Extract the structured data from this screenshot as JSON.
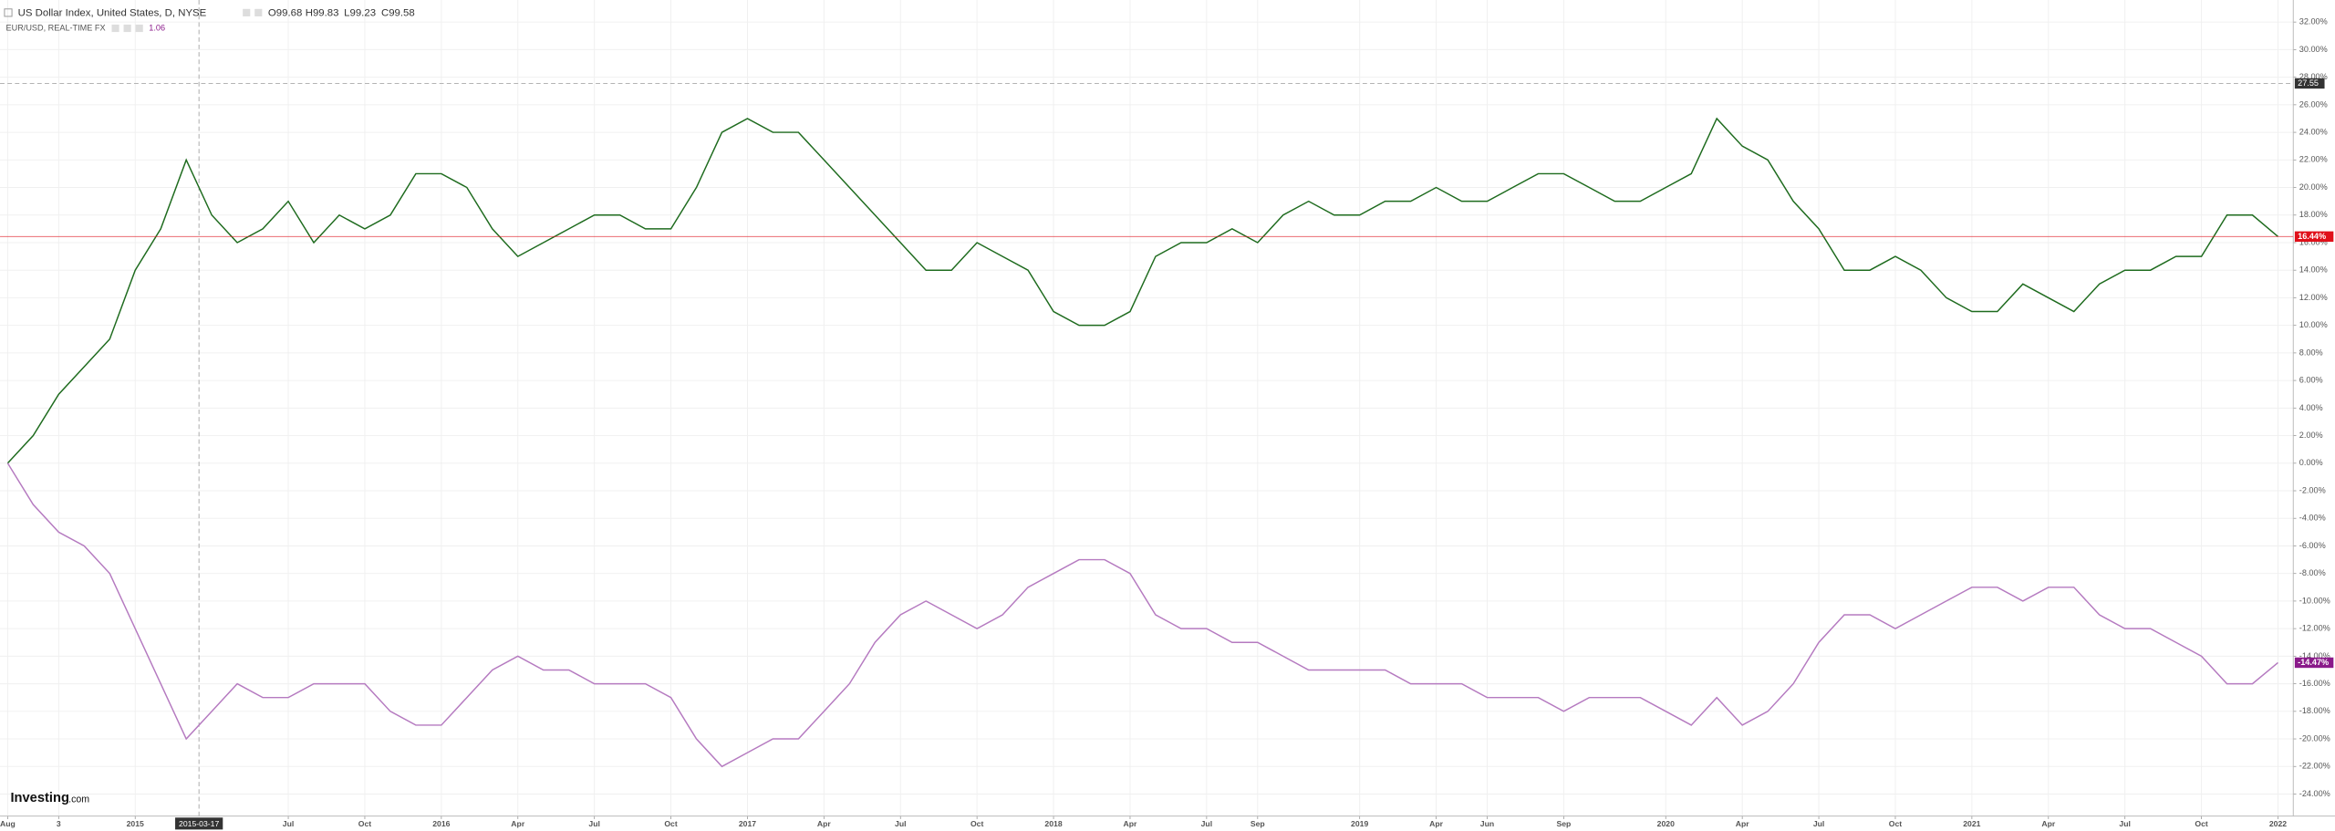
{
  "chart_data": {
    "type": "line",
    "header": {
      "title": "US Dollar Index, United States, D, NYSE",
      "open": "O99.68",
      "high": "H99.83",
      "low": "L99.23",
      "close": "C99.58",
      "compare": "EUR/USD, REAL-TIME FX",
      "compare_value": "1.06"
    },
    "logo": "Investing",
    "logo_suffix": ".com",
    "x": [
      0,
      1,
      2,
      3,
      4,
      5,
      6,
      7,
      8,
      9,
      10,
      11,
      12,
      13,
      14,
      15,
      16,
      17,
      18,
      19,
      20,
      21,
      22,
      23,
      24,
      25,
      26,
      27,
      28,
      29,
      30,
      31,
      32,
      33,
      34,
      35,
      36,
      37,
      38,
      39,
      40,
      41,
      42,
      43,
      44,
      45,
      46,
      47,
      48,
      49,
      50,
      51,
      52,
      53,
      54,
      55,
      56,
      57,
      58,
      59,
      60,
      61,
      62,
      63,
      64,
      65,
      66,
      67,
      68,
      69,
      70,
      71,
      72,
      73,
      74,
      75,
      76,
      77,
      78,
      79,
      80,
      81,
      82,
      83,
      84,
      85,
      86,
      87,
      88,
      89
    ],
    "series": [
      {
        "name": "US Dollar Index",
        "color": "#1e6b1e",
        "last_label": "16.44%",
        "last_color": "#e0101a",
        "values": [
          0,
          2,
          5,
          7,
          9,
          14,
          17,
          22,
          18,
          16,
          17,
          19,
          16,
          18,
          17,
          18,
          21,
          21,
          20,
          17,
          15,
          16,
          17,
          18,
          18,
          17,
          17,
          20,
          24,
          25,
          24,
          24,
          22,
          20,
          18,
          16,
          14,
          14,
          16,
          15,
          14,
          11,
          10,
          10,
          11,
          15,
          16,
          16,
          17,
          16,
          18,
          19,
          18,
          18,
          19,
          19,
          20,
          19,
          19,
          20,
          21,
          21,
          20,
          19,
          19,
          20,
          21,
          25,
          23,
          22,
          19,
          17,
          14,
          14,
          15,
          14,
          12,
          11,
          11,
          13,
          12,
          11,
          13,
          14,
          14,
          15,
          15,
          18,
          18,
          16.44
        ]
      },
      {
        "name": "EUR/USD",
        "color": "#b57ac0",
        "last_label": "-14.47%",
        "last_color": "#8a1a8a",
        "values": [
          0,
          -3,
          -5,
          -6,
          -8,
          -12,
          -16,
          -20,
          -18,
          -16,
          -17,
          -17,
          -16,
          -16,
          -16,
          -18,
          -19,
          -19,
          -17,
          -15,
          -14,
          -15,
          -15,
          -16,
          -16,
          -16,
          -17,
          -20,
          -22,
          -21,
          -20,
          -20,
          -18,
          -16,
          -13,
          -11,
          -10,
          -11,
          -12,
          -11,
          -9,
          -8,
          -7,
          -7,
          -8,
          -11,
          -12,
          -12,
          -13,
          -13,
          -14,
          -15,
          -15,
          -15,
          -15,
          -16,
          -16,
          -16,
          -17,
          -17,
          -17,
          -18,
          -17,
          -17,
          -17,
          -18,
          -19,
          -17,
          -19,
          -18,
          -16,
          -13,
          -11,
          -11,
          -12,
          -11,
          -10,
          -9,
          -9,
          -10,
          -9,
          -9,
          -11,
          -12,
          -12,
          -13,
          -14,
          -16,
          -16,
          -14.47
        ]
      }
    ],
    "xlim": [
      -0.3,
      89.6
    ],
    "xticks": [
      {
        "value": 0,
        "label": "Aug"
      },
      {
        "value": 2,
        "label": "3"
      },
      {
        "value": 5,
        "label": "2015"
      },
      {
        "value": 11,
        "label": "Jul"
      },
      {
        "value": 14,
        "label": "Oct"
      },
      {
        "value": 17,
        "label": "2016"
      },
      {
        "value": 20,
        "label": "Apr"
      },
      {
        "value": 23,
        "label": "Jul"
      },
      {
        "value": 26,
        "label": "Oct"
      },
      {
        "value": 29,
        "label": "2017"
      },
      {
        "value": 32,
        "label": "Apr"
      },
      {
        "value": 35,
        "label": "Jul"
      },
      {
        "value": 38,
        "label": "Oct"
      },
      {
        "value": 41,
        "label": "2018"
      },
      {
        "value": 44,
        "label": "Apr"
      },
      {
        "value": 47,
        "label": "Jul"
      },
      {
        "value": 49,
        "label": "Sep"
      },
      {
        "value": 53,
        "label": "2019"
      },
      {
        "value": 56,
        "label": "Apr"
      },
      {
        "value": 58,
        "label": "Jun"
      },
      {
        "value": 61,
        "label": "Sep"
      },
      {
        "value": 65,
        "label": "2020"
      },
      {
        "value": 68,
        "label": "Apr"
      },
      {
        "value": 71,
        "label": "Jul"
      },
      {
        "value": 74,
        "label": "Oct"
      },
      {
        "value": 77,
        "label": "2021"
      },
      {
        "value": 80,
        "label": "Apr"
      },
      {
        "value": 83,
        "label": "Jul"
      },
      {
        "value": 86,
        "label": "Oct"
      },
      {
        "value": 89,
        "label": "2022"
      }
    ],
    "ylim": [
      -25.6,
      33.6
    ],
    "yticks": [
      {
        "value": -24,
        "label": "-24.00%"
      },
      {
        "value": -22,
        "label": "-22.00%"
      },
      {
        "value": -20,
        "label": "-20.00%"
      },
      {
        "value": -18,
        "label": "-18.00%"
      },
      {
        "value": -16,
        "label": "-16.00%"
      },
      {
        "value": -14,
        "label": "-14.00%"
      },
      {
        "value": -12,
        "label": "-12.00%"
      },
      {
        "value": -10,
        "label": "-10.00%"
      },
      {
        "value": -8,
        "label": "-8.00%"
      },
      {
        "value": -6,
        "label": "-6.00%"
      },
      {
        "value": -4,
        "label": "-4.00%"
      },
      {
        "value": -2,
        "label": "-2.00%"
      },
      {
        "value": 0,
        "label": "0.00%"
      },
      {
        "value": 2,
        "label": "2.00%"
      },
      {
        "value": 4,
        "label": "4.00%"
      },
      {
        "value": 6,
        "label": "6.00%"
      },
      {
        "value": 8,
        "label": "8.00%"
      },
      {
        "value": 10,
        "label": "10.00%"
      },
      {
        "value": 12,
        "label": "12.00%"
      },
      {
        "value": 14,
        "label": "14.00%"
      },
      {
        "value": 16,
        "label": "16.00%"
      },
      {
        "value": 18,
        "label": "18.00%"
      },
      {
        "value": 20,
        "label": "20.00%"
      },
      {
        "value": 22,
        "label": "22.00%"
      },
      {
        "value": 24,
        "label": "24.00%"
      },
      {
        "value": 26,
        "label": "26.00%"
      },
      {
        "value": 28,
        "label": "28.00%"
      },
      {
        "value": 30,
        "label": "30.00%"
      },
      {
        "value": 32,
        "label": "32.00%"
      }
    ],
    "grid": true,
    "crosshair": {
      "x": 7.5,
      "x_label": "2015-03-17",
      "y": 27.55,
      "y_label": "27.55"
    }
  }
}
